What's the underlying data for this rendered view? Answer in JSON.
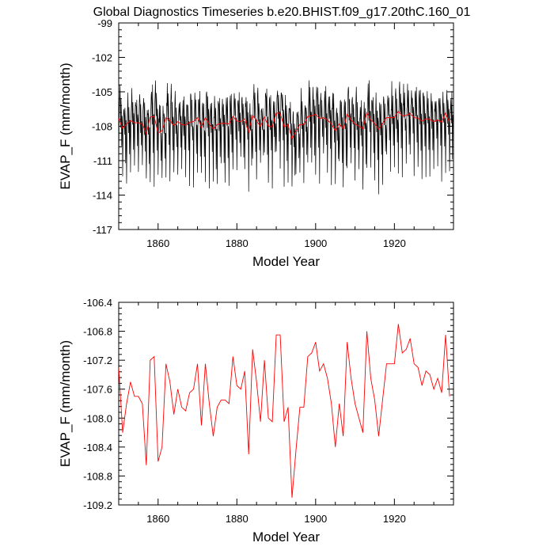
{
  "chart_data": [
    {
      "type": "line",
      "title": "Global Diagnostics Timeseries b.e20.BHIST.f09_g17.20thC.160_01",
      "xlabel": "Model Year",
      "ylabel": "EVAP_F (mm/month)",
      "xlim": [
        1850,
        1935
      ],
      "ylim": [
        -117,
        -99
      ],
      "xticks": [
        1860,
        1880,
        1900,
        1920
      ],
      "xtick_labels": [
        "1860",
        "1880",
        "1900",
        "1920"
      ],
      "yticks": [
        -117,
        -114,
        -111,
        -108,
        -105,
        -102,
        -99
      ],
      "ytick_labels": [
        "-117",
        "-114",
        "-111",
        "-108",
        "-105",
        "-102",
        "-99"
      ],
      "grid": false,
      "series": [
        {
          "name": "",
          "kind": "monthly",
          "color": "#000000"
        },
        {
          "name": "",
          "kind": "annual",
          "color": "#ff0000",
          "x": [
            1850,
            1851,
            1852,
            1853,
            1854,
            1855,
            1856,
            1857,
            1858,
            1859,
            1860,
            1861,
            1862,
            1863,
            1864,
            1865,
            1866,
            1867,
            1868,
            1869,
            1870,
            1871,
            1872,
            1873,
            1874,
            1875,
            1876,
            1877,
            1878,
            1879,
            1880,
            1881,
            1882,
            1883,
            1884,
            1885,
            1886,
            1887,
            1888,
            1889,
            1890,
            1891,
            1892,
            1893,
            1894,
            1895,
            1896,
            1897,
            1898,
            1899,
            1900,
            1901,
            1902,
            1903,
            1904,
            1905,
            1906,
            1907,
            1908,
            1909,
            1910,
            1911,
            1912,
            1913,
            1914,
            1915,
            1916,
            1917,
            1918,
            1919,
            1920,
            1921,
            1922,
            1923,
            1924,
            1925,
            1926,
            1927,
            1928,
            1929,
            1930,
            1931,
            1932,
            1933,
            1934
          ],
          "y": [
            -107.3,
            -108.2,
            -107.8,
            -107.5,
            -107.7,
            -107.7,
            -107.8,
            -108.65,
            -107.2,
            -107.15,
            -108.6,
            -108.4,
            -107.25,
            -107.5,
            -107.95,
            -107.6,
            -107.85,
            -107.9,
            -107.65,
            -107.6,
            -107.25,
            -108.1,
            -107.25,
            -107.8,
            -108.25,
            -107.85,
            -107.75,
            -107.75,
            -107.8,
            -107.15,
            -107.55,
            -107.6,
            -107.35,
            -108.5,
            -107.05,
            -107.5,
            -108.05,
            -107.2,
            -108.0,
            -108.05,
            -106.85,
            -106.85,
            -108.05,
            -107.85,
            -109.1,
            -108.45,
            -107.85,
            -107.85,
            -107.15,
            -107.1,
            -106.95,
            -107.35,
            -107.25,
            -107.45,
            -107.8,
            -108.4,
            -107.8,
            -108.25,
            -106.95,
            -107.45,
            -107.8,
            -108.0,
            -108.2,
            -106.8,
            -107.45,
            -107.75,
            -108.25,
            -107.75,
            -107.25,
            -107.25,
            -107.25,
            -106.7,
            -107.1,
            -107.05,
            -106.9,
            -107.25,
            -107.3,
            -107.55,
            -107.35,
            -107.4,
            -107.6,
            -107.45,
            -107.65,
            -106.85,
            -107.7
          ]
        }
      ]
    },
    {
      "type": "line",
      "title": "",
      "xlabel": "Model Year",
      "ylabel": "EVAP_F (mm/month)",
      "xlim": [
        1850,
        1935
      ],
      "ylim": [
        -109.2,
        -106.4
      ],
      "xticks": [
        1860,
        1880,
        1900,
        1920
      ],
      "xtick_labels": [
        "1860",
        "1880",
        "1900",
        "1920"
      ],
      "yticks": [
        -109.2,
        -108.8,
        -108.4,
        -108.0,
        -107.6,
        -107.2,
        -106.8,
        -106.4
      ],
      "ytick_labels": [
        "-109.2",
        "-108.8",
        "-108.4",
        "-108.0",
        "-107.6",
        "-107.2",
        "-106.8",
        "-106.4"
      ],
      "grid": false,
      "series": [
        {
          "name": "",
          "kind": "annual",
          "color": "#ff0000",
          "x": [
            1850,
            1851,
            1852,
            1853,
            1854,
            1855,
            1856,
            1857,
            1858,
            1859,
            1860,
            1861,
            1862,
            1863,
            1864,
            1865,
            1866,
            1867,
            1868,
            1869,
            1870,
            1871,
            1872,
            1873,
            1874,
            1875,
            1876,
            1877,
            1878,
            1879,
            1880,
            1881,
            1882,
            1883,
            1884,
            1885,
            1886,
            1887,
            1888,
            1889,
            1890,
            1891,
            1892,
            1893,
            1894,
            1895,
            1896,
            1897,
            1898,
            1899,
            1900,
            1901,
            1902,
            1903,
            1904,
            1905,
            1906,
            1907,
            1908,
            1909,
            1910,
            1911,
            1912,
            1913,
            1914,
            1915,
            1916,
            1917,
            1918,
            1919,
            1920,
            1921,
            1922,
            1923,
            1924,
            1925,
            1926,
            1927,
            1928,
            1929,
            1930,
            1931,
            1932,
            1933,
            1934
          ],
          "y": [
            -107.3,
            -108.2,
            -107.8,
            -107.5,
            -107.7,
            -107.7,
            -107.8,
            -108.65,
            -107.2,
            -107.15,
            -108.6,
            -108.4,
            -107.25,
            -107.5,
            -107.95,
            -107.6,
            -107.85,
            -107.9,
            -107.65,
            -107.6,
            -107.25,
            -108.1,
            -107.25,
            -107.8,
            -108.25,
            -107.85,
            -107.75,
            -107.75,
            -107.8,
            -107.15,
            -107.55,
            -107.6,
            -107.35,
            -108.5,
            -107.05,
            -107.5,
            -108.05,
            -107.2,
            -108.0,
            -108.05,
            -106.85,
            -106.85,
            -108.05,
            -107.85,
            -109.1,
            -108.45,
            -107.85,
            -107.85,
            -107.15,
            -107.1,
            -106.95,
            -107.35,
            -107.25,
            -107.45,
            -107.8,
            -108.4,
            -107.8,
            -108.25,
            -106.95,
            -107.45,
            -107.8,
            -108.0,
            -108.2,
            -106.8,
            -107.45,
            -107.75,
            -108.25,
            -107.75,
            -107.25,
            -107.25,
            -107.25,
            -106.7,
            -107.1,
            -107.05,
            -106.9,
            -107.25,
            -107.3,
            -107.55,
            -107.35,
            -107.4,
            -107.6,
            -107.45,
            -107.65,
            -106.85,
            -107.7
          ]
        }
      ]
    }
  ]
}
